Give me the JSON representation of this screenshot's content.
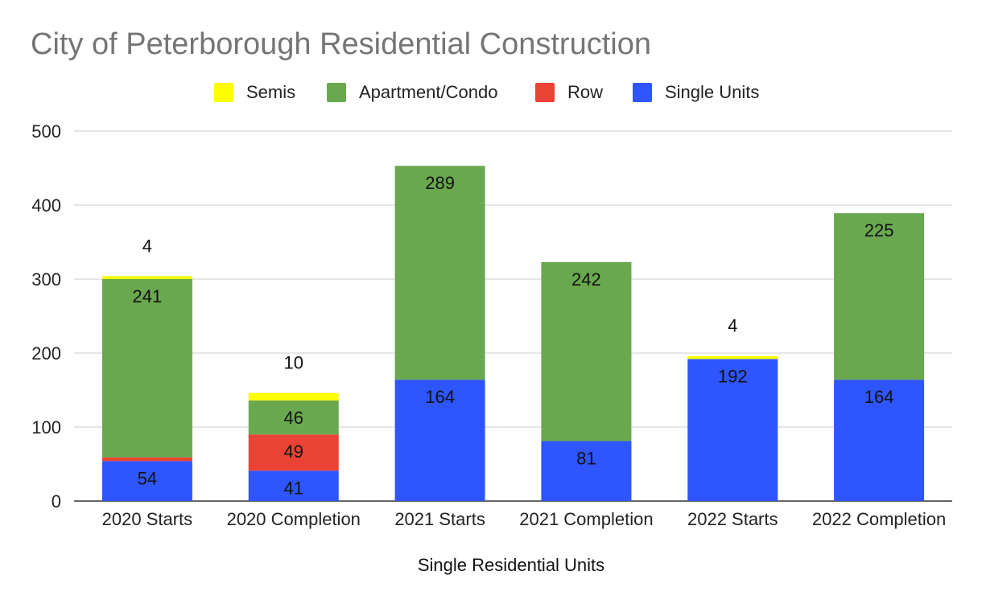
{
  "chart_data": {
    "type": "bar",
    "stacked": true,
    "title": "City of Peterborough Residential Construction",
    "xlabel": "Single Residential Units",
    "ylabel": "",
    "ylim": [
      0,
      500
    ],
    "yticks": [
      0,
      100,
      200,
      300,
      400,
      500
    ],
    "grid": true,
    "legend_position": "top",
    "categories": [
      "2020 Starts",
      "2020 Completion",
      "2021 Starts",
      "2021 Completion",
      "2022 Starts",
      "2022 Completion"
    ],
    "series": [
      {
        "name": "Single Units",
        "color": "#2f55ff",
        "values": [
          54,
          41,
          164,
          81,
          192,
          164
        ]
      },
      {
        "name": "Row",
        "color": "#ea4335",
        "values": [
          5,
          49,
          0,
          0,
          0,
          0
        ]
      },
      {
        "name": "Apartment/Condo",
        "color": "#6aa84f",
        "values": [
          241,
          46,
          289,
          242,
          0,
          225
        ]
      },
      {
        "name": "Semis",
        "color": "#ffff00",
        "values": [
          4,
          10,
          0,
          0,
          4,
          0
        ]
      }
    ],
    "legend_order": [
      "Semis",
      "Apartment/Condo",
      "Row",
      "Single Units"
    ]
  }
}
